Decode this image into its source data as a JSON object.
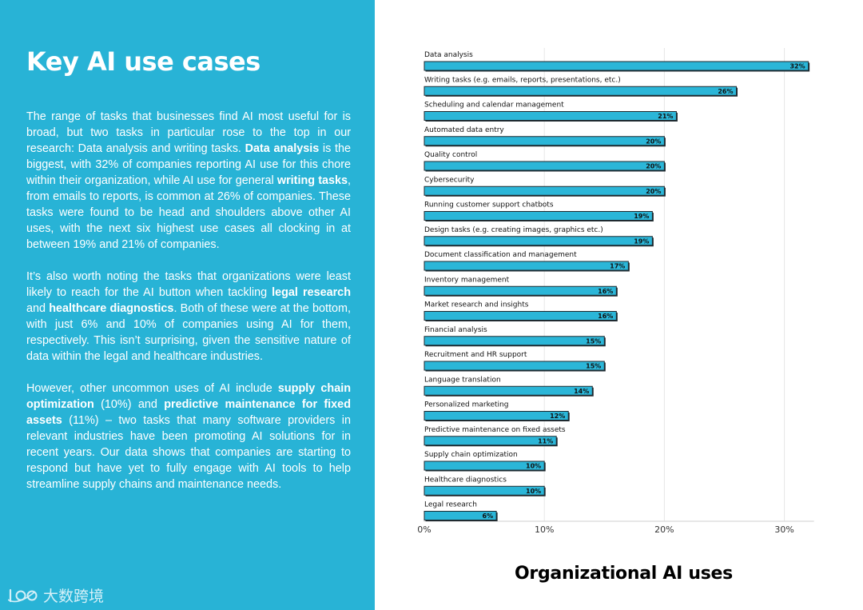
{
  "left_panel": {
    "heading": "Key AI use cases",
    "p1": {
      "t1": "The range of tasks that businesses find AI most useful for is broad, but two tasks in particular rose to the top in our research: Data analysis and writing tasks. ",
      "b1": "Data analysis",
      "t2": " is the biggest, with 32% of companies reporting AI use for this chore within their organization, while AI use for general ",
      "b2": "writing tasks",
      "t3": ", from emails to reports, is common at 26% of companies. These tasks were found to be head and shoulders above other AI uses, with the next six highest use cases all clocking in at between 19% and 21% of companies."
    },
    "p2": {
      "t1": "It’s also worth noting the tasks that organizations were least likely to reach for the AI button when tackling ",
      "b1": "legal research",
      "t2": " and ",
      "b2": "healthcare diagnostics",
      "t3": ". Both of these were at the bottom, with just 6% and 10% of companies using AI for them, respectively. This isn’t surprising, given the sensitive nature of data within the legal and healthcare industries."
    },
    "p3": {
      "t1": "However, other uncommon uses of AI include ",
      "b1": "supply chain optimization",
      "t2": " (10%) and ",
      "b2": "predictive maintenance for fixed assets",
      "t3": " (11%) – two tasks that many software providers in relevant industries have been promoting AI solutions for in recent years. Our data shows that companies are starting to respond but have yet to fully engage with AI tools to help streamline supply chains and maintenance needs."
    },
    "watermark": "大数跨境"
  },
  "colors": {
    "panel": "#28b3d6",
    "bar": "#2bb6d8",
    "bar_outline": "#1f2a30",
    "text": "#000000"
  },
  "chart_data": {
    "type": "bar",
    "orientation": "horizontal",
    "title": "Organizational AI uses",
    "xlabel": "",
    "ylabel": "",
    "xlim": [
      0,
      33
    ],
    "xticks": [
      0,
      10,
      20,
      30
    ],
    "xtick_labels": [
      "0%",
      "10%",
      "20%",
      "30%"
    ],
    "grid": "vertical",
    "categories": [
      "Data analysis",
      "Writing tasks (e.g. emails, reports, presentations, etc.)",
      "Scheduling and calendar management",
      "Automated data entry",
      "Quality control",
      "Cybersecurity",
      "Running customer support chatbots",
      "Design tasks (e.g. creating images, graphics etc.)",
      "Document classification and management",
      "Inventory management",
      "Market research and insights",
      "Financial analysis",
      "Recruitment and HR support",
      "Language translation",
      "Personalized marketing",
      "Predictive maintenance on fixed assets",
      "Supply chain optimization",
      "Healthcare diagnostics",
      "Legal research"
    ],
    "values": [
      32,
      26,
      21,
      20,
      20,
      20,
      19,
      19,
      17,
      16,
      16,
      15,
      15,
      14,
      12,
      11,
      10,
      10,
      6
    ],
    "value_labels": [
      "32%",
      "26%",
      "21%",
      "20%",
      "20%",
      "20%",
      "19%",
      "19%",
      "17%",
      "16%",
      "16%",
      "15%",
      "15%",
      "14%",
      "12%",
      "11%",
      "10%",
      "10%",
      "6%"
    ]
  }
}
